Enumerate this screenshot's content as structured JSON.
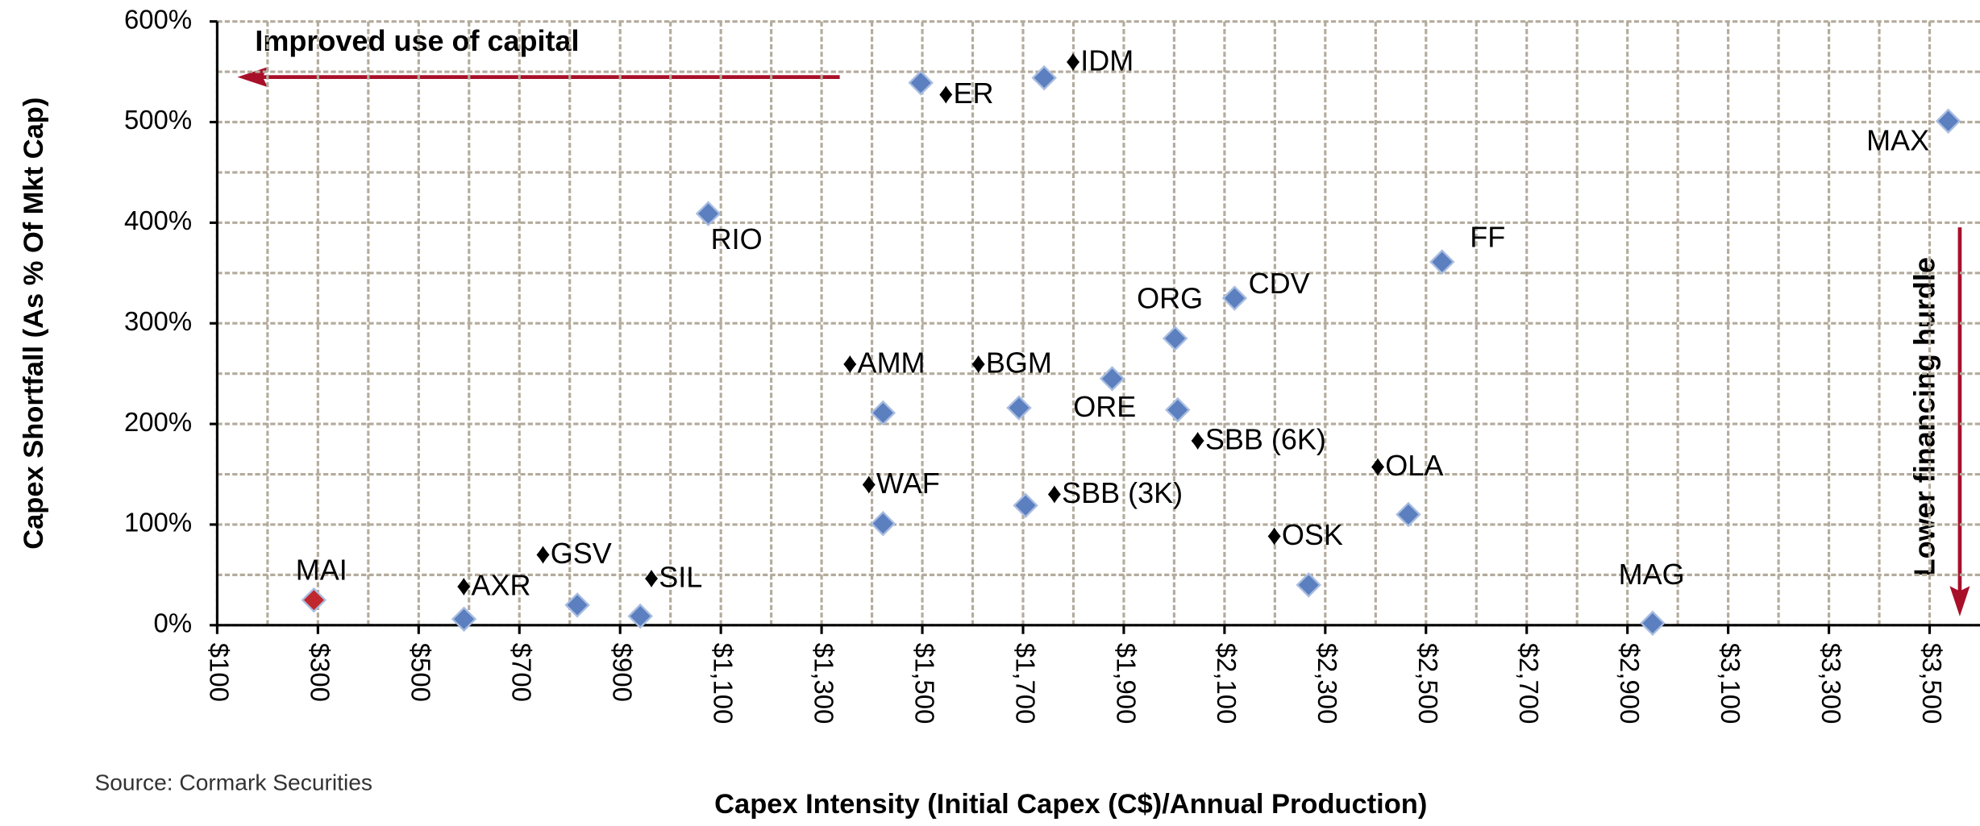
{
  "chart_data": {
    "type": "scatter",
    "xlabel": "Capex Intensity (Initial Capex (C$)/Annual  Production)",
    "ylabel": "Capex Shortfall (As % Of Mkt Cap)",
    "source": "Source: Cormark Securities",
    "annotations": [
      "Improved use of capital",
      "Lower financing hurdle"
    ],
    "annotation_color": "#a8102a",
    "xlim": [
      100,
      3600
    ],
    "ylim": [
      0,
      600
    ],
    "xticks": [
      {
        "value": 100,
        "label": "$100"
      },
      {
        "value": 300,
        "label": "$300"
      },
      {
        "value": 500,
        "label": "$500"
      },
      {
        "value": 700,
        "label": "$700"
      },
      {
        "value": 900,
        "label": "$900"
      },
      {
        "value": 1100,
        "label": "$1,100"
      },
      {
        "value": 1300,
        "label": "$1,300"
      },
      {
        "value": 1500,
        "label": "$1,500"
      },
      {
        "value": 1700,
        "label": "$1,700"
      },
      {
        "value": 1900,
        "label": "$1,900"
      },
      {
        "value": 2100,
        "label": "$2,100"
      },
      {
        "value": 2300,
        "label": "$2,300"
      },
      {
        "value": 2500,
        "label": "$2,500"
      },
      {
        "value": 2700,
        "label": "$2,700"
      },
      {
        "value": 2900,
        "label": "$2,900"
      },
      {
        "value": 3100,
        "label": "$3,100"
      },
      {
        "value": 3300,
        "label": "$3,300"
      },
      {
        "value": 3500,
        "label": "$3,500"
      }
    ],
    "yticks": [
      {
        "value": 0,
        "label": "0%"
      },
      {
        "value": 100,
        "label": "100%"
      },
      {
        "value": 200,
        "label": "200%"
      },
      {
        "value": 300,
        "label": "300%"
      },
      {
        "value": 400,
        "label": "400%"
      },
      {
        "value": 500,
        "label": "500%"
      },
      {
        "value": 600,
        "label": "600%"
      }
    ],
    "grid": true,
    "x": [
      292,
      590,
      815,
      940,
      1075,
      1422,
      1422,
      1497,
      1742,
      1692,
      1705,
      1877,
      2002,
      2007,
      2120,
      2267,
      2465,
      2532,
      2950,
      3537
    ],
    "series": [
      {
        "color": "#5b7fbf",
        "values": [
          25,
          6,
          20,
          9,
          409,
          211,
          101,
          539,
          544,
          216,
          119,
          245,
          285,
          214,
          325,
          40,
          110,
          361,
          2,
          501
        ]
      }
    ],
    "point_labels": [
      "MAI",
      "♦AXR",
      "♦GSV",
      "♦SIL",
      "RIO",
      "♦AMM",
      "♦WAF",
      "♦ER",
      "♦IDM",
      "♦BGM",
      "♦SBB (3K)",
      "ORE",
      "ORG",
      "♦SBB (6K)",
      "CDV",
      "♦OSK",
      "♦OLA",
      "FF",
      "MAG",
      "MAX"
    ],
    "point_colors": [
      "#c0282d",
      "#5b7fbf",
      "#5b7fbf",
      "#5b7fbf",
      "#5b7fbf",
      "#5b7fbf",
      "#5b7fbf",
      "#5b7fbf",
      "#5b7fbf",
      "#5b7fbf",
      "#5b7fbf",
      "#5b7fbf",
      "#5b7fbf",
      "#5b7fbf",
      "#5b7fbf",
      "#5b7fbf",
      "#5b7fbf",
      "#5b7fbf",
      "#5b7fbf",
      "#5b7fbf"
    ]
  }
}
